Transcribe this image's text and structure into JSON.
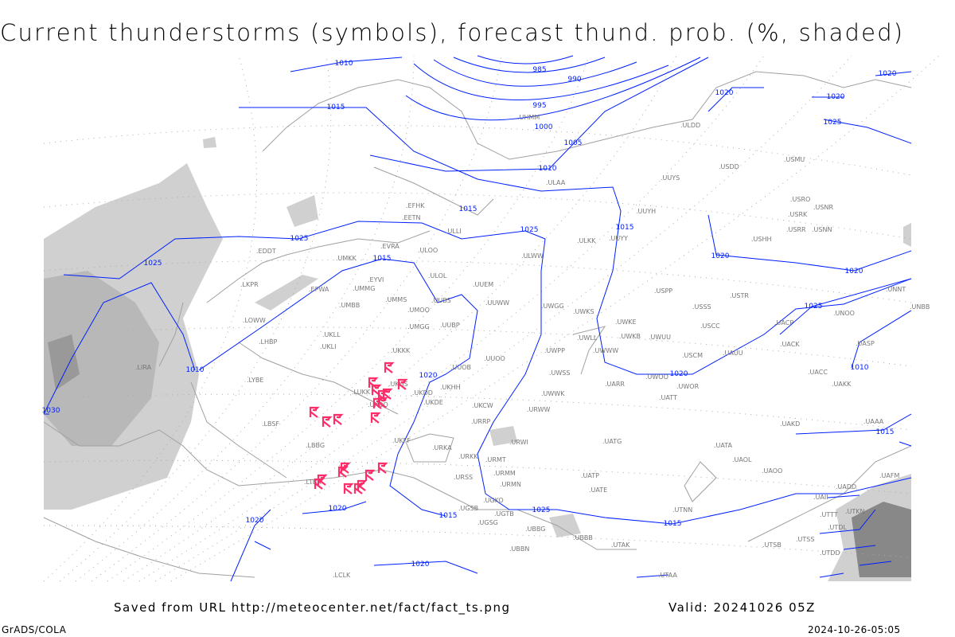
{
  "title": "Current thunderstorms (symbols), forecast thund. prob. (%, shaded)",
  "footer": {
    "source": "Saved from URL http://meteocenter.net/fact/fact_ts.png",
    "valid": "Valid: 20241026 05Z",
    "credit": "GrADS/COLA",
    "timestamp": "2024-10-26-05:05"
  },
  "colors": {
    "isobar": "#0020ff",
    "thunderstorm_symbol": "#ff2d6a",
    "coastline": "#a0a0a0",
    "shading": "#c8c8c8"
  },
  "isobar_labels": [
    "1010",
    "985",
    "990",
    "995",
    "1000",
    "1005",
    "1010",
    "1015",
    "1015",
    "1015",
    "1020",
    "1020",
    "1020",
    "1025",
    "1025",
    "1025",
    "1025",
    "1015",
    "1010",
    "1010",
    "1015",
    "1020",
    "1015",
    "1020",
    "1020",
    "1020",
    "1020",
    "1025",
    "1020",
    "1025",
    "1030",
    "1015",
    "1020"
  ],
  "stations": [
    "ULDD",
    "USDD",
    "USMU",
    "UUYS",
    "ULAA",
    "USRO",
    "USNR",
    "USRK",
    "UUYH",
    "EFHK",
    "EETN",
    "ULLI",
    "ULKK",
    "UUYY",
    "USRR",
    "USNN",
    "USHH",
    "EVRA",
    "ULOO",
    "EDDT",
    "UMKK",
    "ULWW",
    "ULOL",
    "EYVI",
    "UUEM",
    "EPWA",
    "UMMG",
    "USPP",
    "USTR",
    "UMMS",
    "UMOO",
    "UUBS",
    "UUWW",
    "UWGG",
    "UWKS",
    "USSS",
    "UMBB",
    "UNOO",
    "LKPR",
    "LOWW",
    "UWKE",
    "USCC",
    "UACP",
    "UMGG",
    "UUBP",
    "UKLL",
    "UWKB",
    "UWUU",
    "UWLL",
    "LHBP",
    "UKLI",
    "UKKK",
    "UACK",
    "UASP",
    "UWWW",
    "UWPP",
    "USCM",
    "UAUU",
    "UUOO",
    "LIRA",
    "UUOB",
    "UWSS",
    "UACC",
    "UKHH",
    "UKDD",
    "UKHS",
    "LYBE",
    "UWOO",
    "UARR",
    "UAKK",
    "UWOR",
    "UATT",
    "UKDE",
    "LUKK",
    "UKOO",
    "UWWK",
    "UKCW",
    "URWW",
    "URRP",
    "LBSF",
    "UKFF",
    "UAKD",
    "UAAA",
    "URKA",
    "LBBG",
    "URWI",
    "UATG",
    "URKK",
    "URMT",
    "UATA",
    "UAOL",
    "URMM",
    "UAOO",
    "UATP",
    "URSS",
    "UAFM",
    "LTBA",
    "URMN",
    "UATE",
    "UADD",
    "UGKO",
    "UAII",
    "UGTB",
    "UGSB",
    "UTNN",
    "UTKN",
    "UTTT",
    "UBBG",
    "UTDL",
    "UGSG",
    "UBBB",
    "UTAK",
    "UTSB",
    "UTSS",
    "UBBN",
    "UTDD",
    "UTAA",
    "LCLK",
    "UNNT",
    "UNBB",
    "UHMM"
  ],
  "thunderstorm_count": 21
}
